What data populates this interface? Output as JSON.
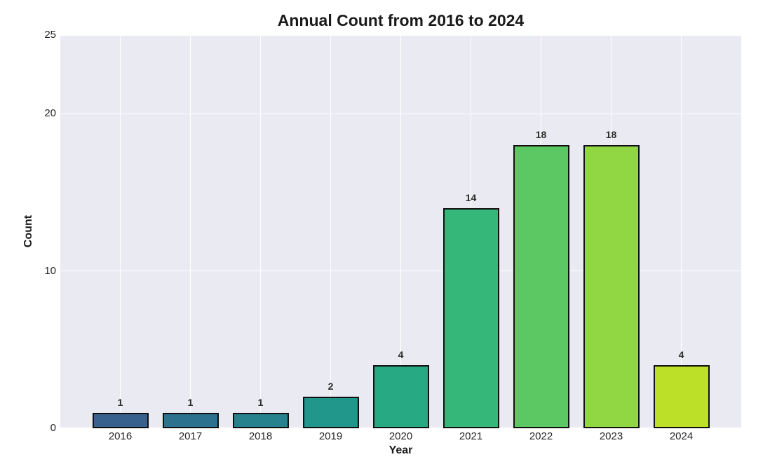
{
  "chart_data": {
    "type": "bar",
    "title": "Annual Count from 2016 to 2024",
    "xlabel": "Year",
    "ylabel": "Count",
    "categories": [
      "2016",
      "2017",
      "2018",
      "2019",
      "2020",
      "2021",
      "2022",
      "2023",
      "2024"
    ],
    "values": [
      1,
      1,
      1,
      2,
      4,
      14,
      18,
      18,
      4
    ],
    "bar_labels": [
      "1",
      "1",
      "1",
      "2",
      "4",
      "14",
      "18",
      "18",
      "4"
    ],
    "bar_colors": [
      "#39618e",
      "#2c718e",
      "#26838e",
      "#21968b",
      "#27a984",
      "#35b779",
      "#5cc863",
      "#90d743",
      "#bcdf27"
    ],
    "bar_edge_color": "#111111",
    "yticks": [
      0,
      10,
      20,
      25
    ],
    "ytick_labels": [
      "0",
      "10",
      "20",
      "25"
    ],
    "ylim": [
      0,
      25
    ],
    "grid": true,
    "legend": false,
    "plot_bg_color": "#eaeaf2",
    "grid_color": "#ffffff",
    "tick_text_color": "#262626",
    "value_label_color": "#2b2b2b",
    "title_color": "#1a1a1a",
    "axis_label_color": "#1a1a1a"
  }
}
